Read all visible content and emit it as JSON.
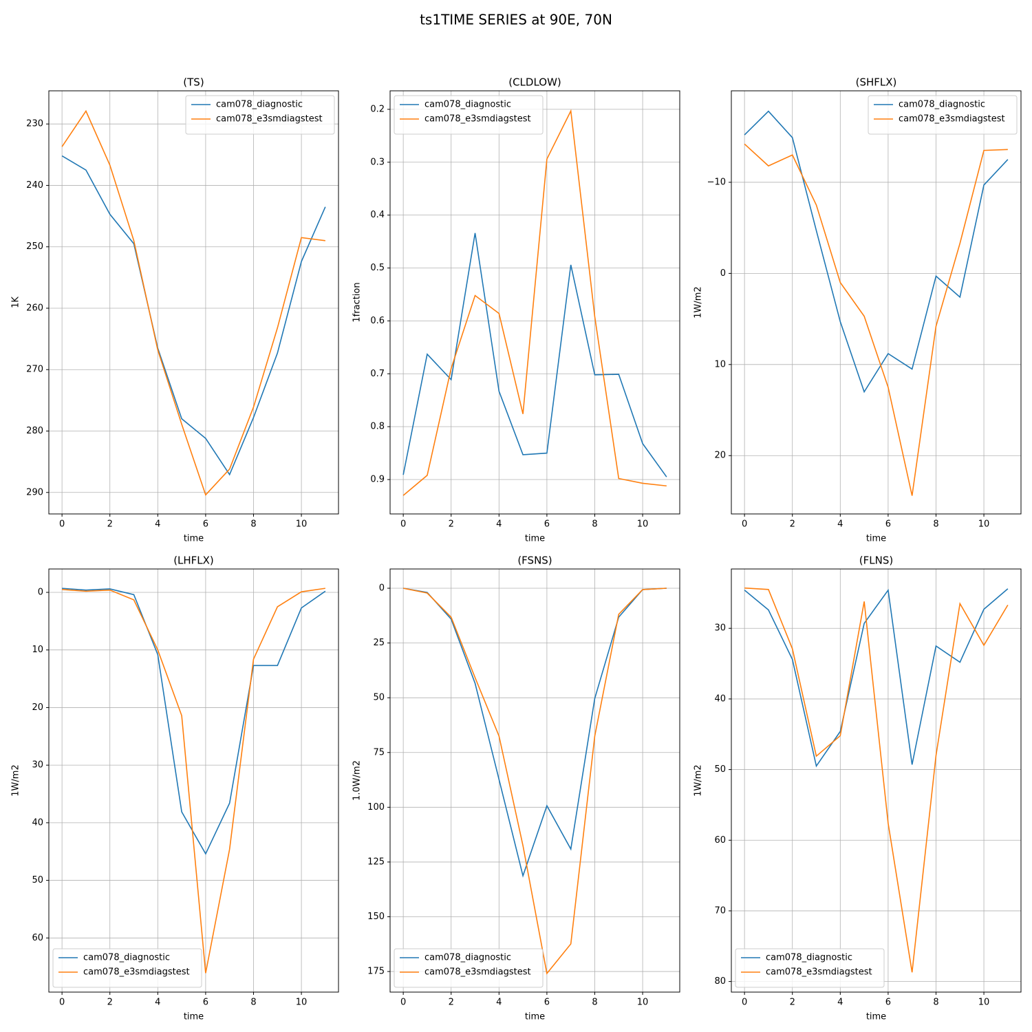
{
  "title": "ts1TIME SERIES at 90E, 70N",
  "chart_data": [
    {
      "type": "line",
      "title": "(TS)",
      "xlabel": "time",
      "ylabel": "1K",
      "x": [
        0,
        1,
        2,
        3,
        4,
        5,
        6,
        7,
        8,
        9,
        10,
        11
      ],
      "xlim": [
        -0.55,
        11.55
      ],
      "xticks": [
        0,
        2,
        4,
        6,
        8,
        10
      ],
      "ylim": [
        293.5,
        224.6
      ],
      "yticks": [
        230,
        240,
        250,
        260,
        270,
        280,
        290
      ],
      "grid": true,
      "legend": "upper right",
      "series": [
        {
          "name": "cam078_diagnostic",
          "color": "#1f77b4",
          "values": [
            235.2,
            237.5,
            244.7,
            249.5,
            266.5,
            278,
            281.2,
            287.1,
            277.8,
            267.3,
            252.4,
            243.5
          ]
        },
        {
          "name": "cam078_e3smdiagstest",
          "color": "#ff7f0e",
          "values": [
            233.7,
            227.9,
            236.7,
            249,
            266.8,
            278.9,
            290.4,
            286.2,
            276.1,
            263.2,
            248.5,
            249
          ]
        }
      ]
    },
    {
      "type": "line",
      "title": "(CLDLOW)",
      "xlabel": "time",
      "ylabel": "1fraction",
      "x": [
        0,
        1,
        2,
        3,
        4,
        5,
        6,
        7,
        8,
        9,
        10,
        11
      ],
      "xlim": [
        -0.55,
        11.55
      ],
      "xticks": [
        0,
        2,
        4,
        6,
        8,
        10
      ],
      "ylim": [
        0.965,
        0.165
      ],
      "yticks": [
        0.2,
        0.3,
        0.4,
        0.5,
        0.6,
        0.7,
        0.8,
        0.9
      ],
      "grid": true,
      "legend": "upper left",
      "series": [
        {
          "name": "cam078_diagnostic",
          "color": "#1f77b4",
          "values": [
            0.891,
            0.663,
            0.711,
            0.434,
            0.733,
            0.853,
            0.85,
            0.494,
            0.702,
            0.701,
            0.832,
            0.895
          ]
        },
        {
          "name": "cam078_e3smdiagstest",
          "color": "#ff7f0e",
          "values": [
            0.93,
            0.892,
            0.69,
            0.552,
            0.586,
            0.776,
            0.294,
            0.203,
            0.592,
            0.898,
            0.907,
            0.912
          ]
        }
      ]
    },
    {
      "type": "line",
      "title": "(SHFLX)",
      "xlabel": "time",
      "ylabel": "1W/m2",
      "x": [
        0,
        1,
        2,
        3,
        4,
        5,
        6,
        7,
        8,
        9,
        10,
        11
      ],
      "xlim": [
        -0.55,
        11.55
      ],
      "xticks": [
        0,
        2,
        4,
        6,
        8,
        10
      ],
      "ylim": [
        26.4,
        -20.04
      ],
      "yticks": [
        {
          "value": -10,
          "label": "−10"
        },
        0,
        10,
        20
      ],
      "grid": true,
      "legend": "upper right",
      "series": [
        {
          "name": "cam078_diagnostic",
          "color": "#1f77b4",
          "values": [
            -15.2,
            -17.8,
            -14.9,
            -4.7,
            5.3,
            13,
            8.8,
            10.5,
            0.3,
            2.6,
            -9.7,
            -12.5
          ]
        },
        {
          "name": "cam078_e3smdiagstest",
          "color": "#ff7f0e",
          "values": [
            -14.2,
            -11.8,
            -13,
            -7.5,
            1,
            4.7,
            12.5,
            24.4,
            5.8,
            -3.3,
            -13.5,
            -13.6
          ]
        }
      ]
    },
    {
      "type": "line",
      "title": "(LHFLX)",
      "xlabel": "time",
      "ylabel": "1W/m2",
      "x": [
        0,
        1,
        2,
        3,
        4,
        5,
        6,
        7,
        8,
        9,
        10,
        11
      ],
      "xlim": [
        -0.55,
        11.55
      ],
      "xticks": [
        0,
        2,
        4,
        6,
        8,
        10
      ],
      "ylim": [
        69.4,
        -4.06
      ],
      "yticks": [
        0,
        10,
        20,
        30,
        40,
        50,
        60
      ],
      "grid": true,
      "legend": "lower left",
      "series": [
        {
          "name": "cam078_diagnostic",
          "color": "#1f77b4",
          "values": [
            -0.7,
            -0.4,
            -0.6,
            0.4,
            10.8,
            38.1,
            45.4,
            36.6,
            12.7,
            12.7,
            2.7,
            -0.2
          ]
        },
        {
          "name": "cam078_e3smdiagstest",
          "color": "#ff7f0e",
          "values": [
            -0.5,
            -0.2,
            -0.4,
            1.3,
            10,
            21.4,
            66.1,
            44.6,
            11.6,
            2.5,
            -0.1,
            -0.7
          ]
        }
      ]
    },
    {
      "type": "line",
      "title": "(FSNS)",
      "xlabel": "time",
      "ylabel": "1.0W/m2",
      "x": [
        0,
        1,
        2,
        3,
        4,
        5,
        6,
        7,
        8,
        9,
        10,
        11
      ],
      "xlim": [
        -0.55,
        11.55
      ],
      "xticks": [
        0,
        2,
        4,
        6,
        8,
        10
      ],
      "ylim": [
        184.4,
        -8.8
      ],
      "yticks": [
        0,
        25,
        50,
        75,
        100,
        125,
        150,
        175
      ],
      "grid": true,
      "legend": "lower left",
      "series": [
        {
          "name": "cam078_diagnostic",
          "color": "#1f77b4",
          "values": [
            0,
            1.9,
            14.1,
            43.4,
            87.3,
            131.3,
            99.3,
            119.1,
            50.3,
            13.2,
            0.6,
            0
          ]
        },
        {
          "name": "cam078_e3smdiagstest",
          "color": "#ff7f0e",
          "values": [
            0,
            2.2,
            13.2,
            40.8,
            67.5,
            117.5,
            175.9,
            162.4,
            67.5,
            11.9,
            0.6,
            0
          ]
        }
      ]
    },
    {
      "type": "line",
      "title": "(FLNS)",
      "xlabel": "time",
      "ylabel": "1W/m2",
      "x": [
        0,
        1,
        2,
        3,
        4,
        5,
        6,
        7,
        8,
        9,
        10,
        11
      ],
      "xlim": [
        -0.55,
        11.55
      ],
      "xticks": [
        0,
        2,
        4,
        6,
        8,
        10
      ],
      "ylim": [
        81.5,
        21.6
      ],
      "yticks": [
        30,
        40,
        50,
        60,
        70,
        80
      ],
      "grid": true,
      "legend": "lower left",
      "series": [
        {
          "name": "cam078_diagnostic",
          "color": "#1f77b4",
          "values": [
            24.6,
            27.4,
            34.4,
            49.5,
            44.6,
            29.3,
            24.6,
            49.3,
            32.5,
            34.8,
            27.3,
            24.4
          ]
        },
        {
          "name": "cam078_e3smdiagstest",
          "color": "#ff7f0e",
          "values": [
            24.3,
            24.5,
            32.9,
            48.1,
            45.2,
            26.2,
            57.6,
            78.7,
            48,
            26.5,
            32.4,
            26.7
          ]
        }
      ]
    }
  ]
}
